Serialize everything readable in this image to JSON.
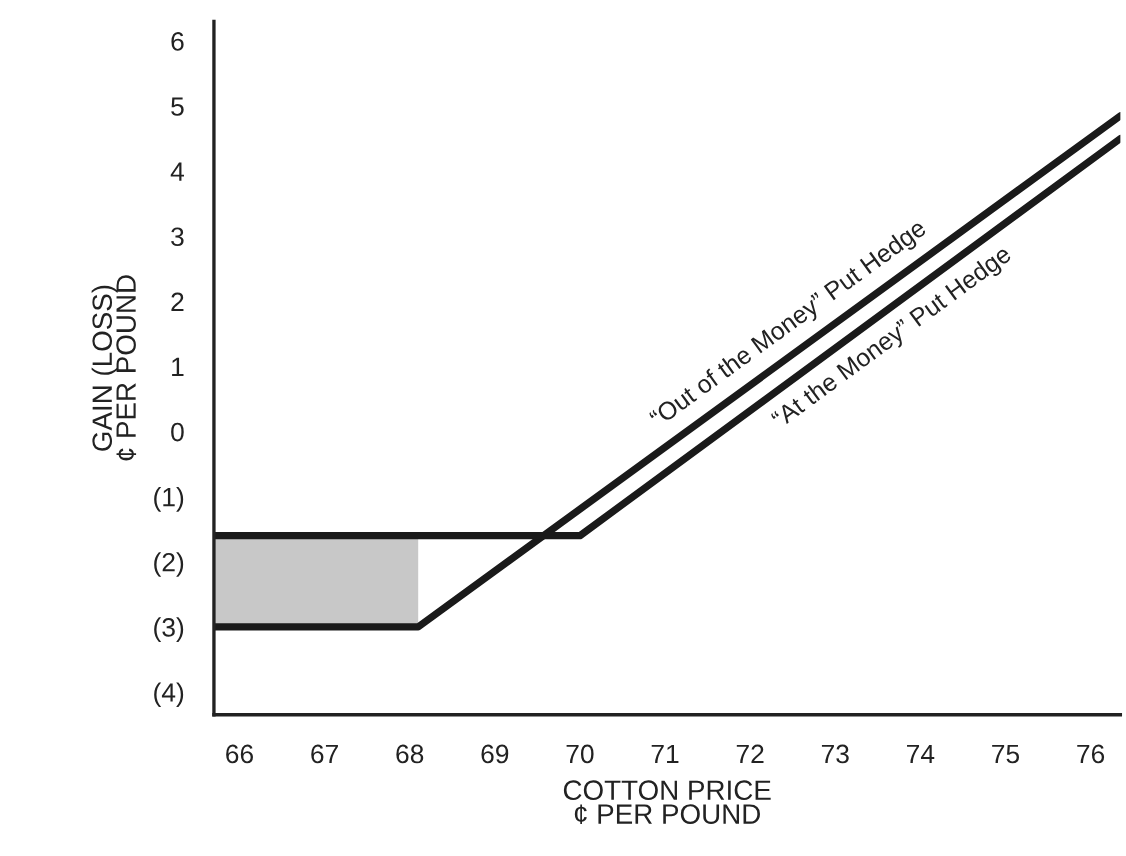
{
  "chart_data": {
    "type": "line",
    "xlabel": "COTTON PRICE\n¢ PER POUND",
    "ylabel": "GAIN (LOSS)\n¢ PER POUND",
    "series": [
      {
        "color": "#1a1a1a",
        "x": [
          65.7,
          68.1,
          76.35
        ],
        "values": [
          -3.0,
          -3.0,
          4.85
        ],
        "upper": [
          -1.6,
          -1.6,
          null
        ],
        "lower": [
          -3.0,
          -3.0,
          null
        ]
      },
      {
        "color": "#1a1a1a",
        "x": [
          65.7,
          70.0,
          76.35
        ],
        "values": [
          -1.6,
          -1.6,
          4.5
        ]
      }
    ],
    "annotations": [
      "“Out of the Money” Put Hedge",
      "“At the Money” Put Hedge"
    ],
    "xlim": [
      65.7,
      76.35
    ],
    "xticks": [
      66,
      67,
      68,
      69,
      70,
      71,
      72,
      73,
      74,
      75,
      76
    ],
    "ylim": [
      -4.35,
      6.3
    ],
    "yticks": [
      6,
      5,
      4,
      3,
      2,
      1,
      0,
      {
        "value": -1,
        "label": "(1)"
      },
      {
        "value": -2,
        "label": "(2)"
      },
      {
        "value": -3,
        "label": "(3)"
      },
      {
        "value": -4,
        "label": "(4)"
      }
    ],
    "grid": false,
    "legend": false,
    "marker": "none",
    "line_style": "solid"
  }
}
